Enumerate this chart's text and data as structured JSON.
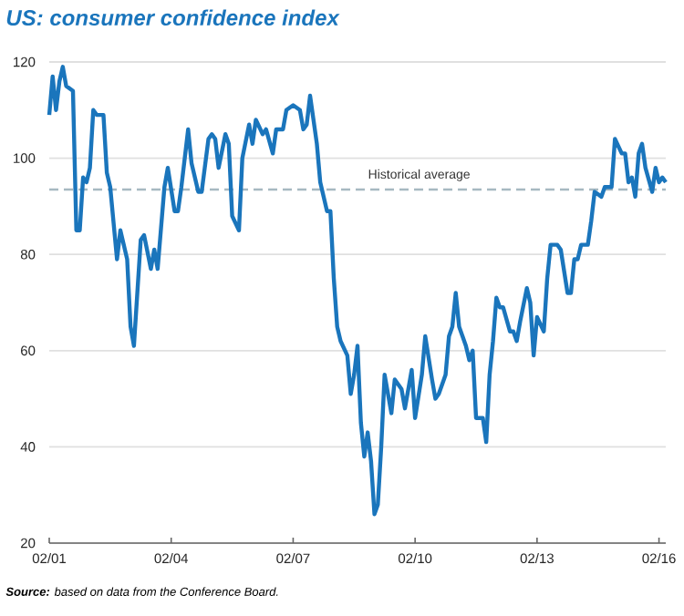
{
  "chart_data": {
    "type": "line",
    "title": "US: consumer confidence index",
    "annotations": [
      "**Source:** based on data from the Conference Board."
    ],
    "x": [
      "2001-02",
      "2001-03",
      "2001-04",
      "2001-05",
      "2001-06",
      "2001-07",
      "2001-09",
      "2001-10",
      "2001-11",
      "2001-12",
      "2002-01",
      "2002-02",
      "2002-03",
      "2002-04",
      "2002-06",
      "2002-07",
      "2002-08",
      "2002-10",
      "2002-11",
      "2003-01",
      "2003-02",
      "2003-03",
      "2003-05",
      "2003-06",
      "2003-08",
      "2003-09",
      "2003-10",
      "2003-12",
      "2004-01",
      "2004-03",
      "2004-04",
      "2004-05",
      "2004-07",
      "2004-08",
      "2004-10",
      "2004-11",
      "2005-01",
      "2005-02",
      "2005-03",
      "2005-04",
      "2005-06",
      "2005-07",
      "2005-08",
      "2005-10",
      "2005-11",
      "2006-01",
      "2006-02",
      "2006-03",
      "2006-05",
      "2006-06",
      "2006-08",
      "2006-09",
      "2006-11",
      "2006-12",
      "2007-02",
      "2007-04",
      "2007-05",
      "2007-06",
      "2007-07",
      "2007-09",
      "2007-10",
      "2007-12",
      "2008-01",
      "2008-02",
      "2008-03",
      "2008-04",
      "2008-06",
      "2008-07",
      "2008-08",
      "2008-09",
      "2008-10",
      "2008-11",
      "2008-12",
      "2009-01",
      "2009-02",
      "2009-03",
      "2009-04",
      "2009-05",
      "2009-07",
      "2009-08",
      "2009-10",
      "2009-11",
      "2009-12",
      "2010-01",
      "2010-02",
      "2010-04",
      "2010-05",
      "2010-07",
      "2010-08",
      "2010-09",
      "2010-11",
      "2010-12",
      "2011-01",
      "2011-02",
      "2011-03",
      "2011-05",
      "2011-06",
      "2011-07",
      "2011-08",
      "2011-10",
      "2011-11",
      "2011-12",
      "2012-01",
      "2012-02",
      "2012-03",
      "2012-04",
      "2012-06",
      "2012-07",
      "2012-08",
      "2012-09",
      "2012-11",
      "2012-12",
      "2013-01",
      "2013-02",
      "2013-04",
      "2013-05",
      "2013-06",
      "2013-08",
      "2013-09",
      "2013-11",
      "2013-12",
      "2014-01",
      "2014-02",
      "2014-03",
      "2014-05",
      "2014-06",
      "2014-07",
      "2014-09",
      "2014-10",
      "2014-11",
      "2014-12",
      "2015-01",
      "2015-03",
      "2015-04",
      "2015-05",
      "2015-06",
      "2015-07",
      "2015-08",
      "2015-09",
      "2015-10",
      "2015-12",
      "2016-01",
      "2016-02",
      "2016-03",
      "2016-04"
    ],
    "series": [
      {
        "color": "#1a75bc",
        "values": [
          109,
          117,
          110,
          116,
          119,
          115,
          114,
          85,
          85,
          96,
          95,
          98,
          110,
          109,
          109,
          97,
          94,
          79,
          85,
          79,
          65,
          61,
          83,
          84,
          77,
          81,
          77,
          94,
          98,
          89,
          89,
          94,
          106,
          99,
          93,
          93,
          104,
          105,
          104,
          98,
          105,
          103,
          88,
          85,
          100,
          107,
          103,
          108,
          105,
          106,
          101,
          106,
          106,
          110,
          111,
          110,
          106,
          107,
          113,
          103,
          95,
          89,
          89,
          75,
          65,
          62,
          59,
          51,
          55,
          61,
          45,
          38,
          43,
          37,
          26,
          28,
          40,
          55,
          47,
          54,
          52,
          48,
          52,
          56,
          46,
          55,
          63,
          54,
          50,
          51,
          55,
          63,
          65,
          72,
          65,
          61,
          58,
          60,
          46,
          46,
          41,
          55,
          62,
          71,
          69,
          69,
          64,
          64,
          62,
          66,
          73,
          70,
          59,
          67,
          64,
          75,
          82,
          82,
          81,
          72,
          72,
          79,
          79,
          82,
          82,
          87,
          93,
          92,
          94,
          94,
          94,
          104,
          101,
          101,
          95,
          96,
          92,
          101,
          103,
          98,
          93,
          98,
          95,
          96,
          95
        ]
      }
    ],
    "xlim": [
      "2001-02",
      "2016-04"
    ],
    "ylim": [
      20,
      120
    ],
    "xticks": [
      {
        "value": "2001-02",
        "label": "02/01"
      },
      {
        "value": "2004-02",
        "label": "02/04"
      },
      {
        "value": "2007-02",
        "label": "02/07"
      },
      {
        "value": "2010-02",
        "label": "02/10"
      },
      {
        "value": "2013-02",
        "label": "02/13"
      },
      {
        "value": "2016-02",
        "label": "02/16"
      }
    ],
    "yticks": [
      20,
      40,
      60,
      80,
      100,
      120
    ],
    "grid": "y",
    "ref_lines": [
      {
        "axis": "y",
        "value": 93.5,
        "label": "Historical average",
        "color": "#a7b9c1",
        "line_style": "dashed"
      }
    ]
  }
}
